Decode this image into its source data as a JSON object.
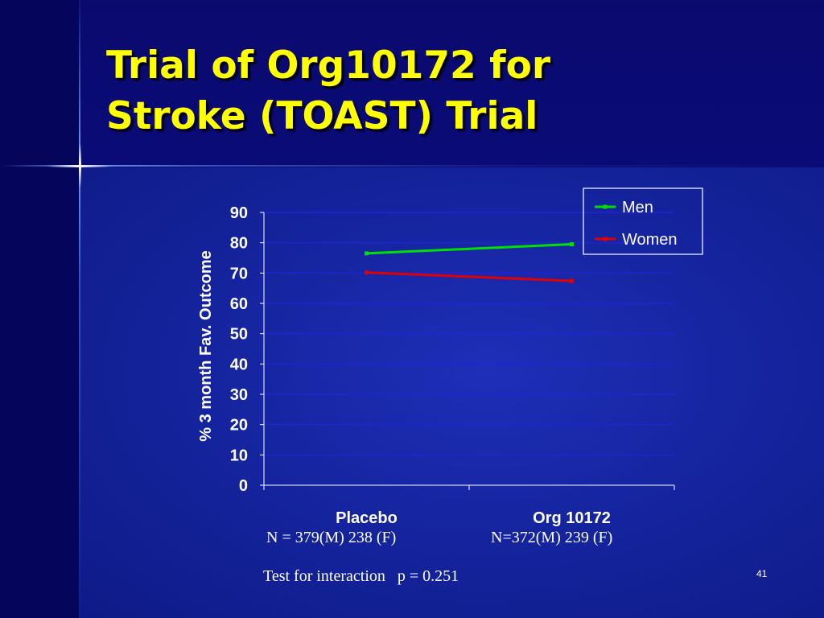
{
  "slide": {
    "title_lines": [
      "Trial of Org10172 for",
      "Stroke (TOAST) Trial"
    ],
    "sample_sizes": [
      "N = 379(M) 238 (F)",
      "N=372(M) 239 (F)"
    ],
    "footnote": "Test for interaction   p = 0.251",
    "slide_number": "41"
  },
  "colors": {
    "title": "#ffff00",
    "background": "#1626a2",
    "men": "#00e000",
    "women": "#e00000",
    "text": "#ffffff",
    "gridline": "#2222dd"
  },
  "chart_data": {
    "type": "line",
    "title": "",
    "xlabel": "",
    "ylabel": "% 3 month Fav. Outcome",
    "categories": [
      "Placebo",
      "Org 10172"
    ],
    "series": [
      {
        "name": "Men",
        "values": [
          76.5,
          79.5
        ],
        "color": "#00e000"
      },
      {
        "name": "Women",
        "values": [
          70.2,
          67.4
        ],
        "color": "#e00000"
      }
    ],
    "ylim": [
      0,
      90
    ],
    "yticks": [
      0,
      10,
      20,
      30,
      40,
      50,
      60,
      70,
      80,
      90
    ],
    "grid": true,
    "legend": "top-right"
  }
}
